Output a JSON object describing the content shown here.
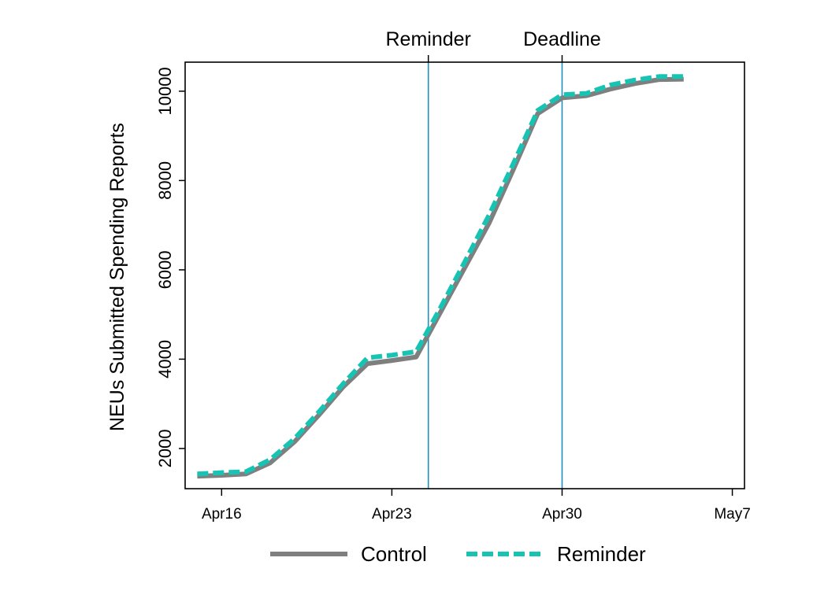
{
  "chart_data": {
    "type": "line",
    "ylabel": "NEUs Submitted Spending Reports",
    "ylim": [
      1100,
      10650
    ],
    "yticks": [
      2000,
      4000,
      6000,
      8000,
      10000
    ],
    "x_dates": [
      "Apr 15",
      "Apr 16",
      "Apr 17",
      "Apr 18",
      "Apr 19",
      "Apr 20",
      "Apr 21",
      "Apr 22",
      "Apr 23",
      "Apr 24",
      "Apr 25",
      "Apr 26",
      "Apr 27",
      "Apr 28",
      "Apr 29",
      "Apr 30",
      "May 1",
      "May 2",
      "May 3",
      "May 4",
      "May 5"
    ],
    "xlim": [
      "Apr 14.5",
      "May 7.5"
    ],
    "xticks": [
      {
        "date": "Apr 16",
        "label": "Apr16"
      },
      {
        "date": "Apr 23",
        "label": "Apr23"
      },
      {
        "date": "Apr 30",
        "label": "Apr30"
      },
      {
        "date": "May 7",
        "label": "May7"
      }
    ],
    "series": [
      {
        "name": "Control",
        "color": "#7f7f7f",
        "style": "solid",
        "values": [
          1380,
          1400,
          1430,
          1680,
          2150,
          2750,
          3380,
          3900,
          3970,
          4050,
          5050,
          6050,
          7050,
          8250,
          9500,
          9850,
          9900,
          10050,
          10170,
          10260,
          10270
        ]
      },
      {
        "name": "Reminder",
        "color": "#17c3b2",
        "style": "dashed",
        "values": [
          1430,
          1460,
          1480,
          1750,
          2220,
          2820,
          3450,
          4030,
          4090,
          4170,
          5150,
          6180,
          7230,
          8380,
          9570,
          9920,
          9950,
          10140,
          10250,
          10330,
          10330
        ]
      }
    ],
    "annotations": [
      {
        "label": "Reminder",
        "date": "Apr 24 + 0.5"
      },
      {
        "label": "Deadline",
        "date": "Apr 30"
      }
    ],
    "vline_color": "#1f8fbf",
    "legend_position": "bottom",
    "grid": false
  }
}
